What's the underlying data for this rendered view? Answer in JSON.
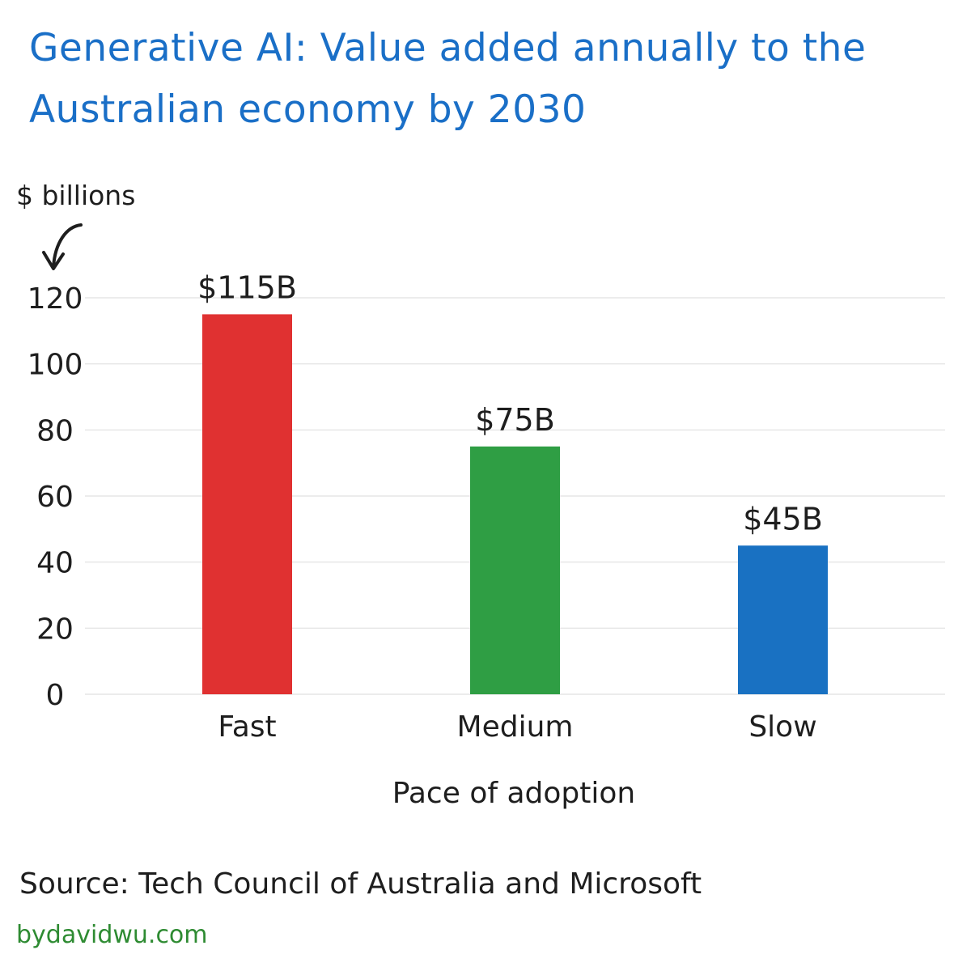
{
  "chart_data": {
    "type": "bar",
    "title": "Generative AI: Value added annually to the Australian economy by 2030",
    "ylabel": "$ billions",
    "xlabel": "Pace of adoption",
    "categories": [
      "Fast",
      "Medium",
      "Slow"
    ],
    "values": [
      115,
      75,
      45
    ],
    "data_labels": [
      "$115B",
      "$75B",
      "$45B"
    ],
    "colors": [
      "#e03131",
      "#2f9e44",
      "#1971c2"
    ],
    "ylim": [
      0,
      120
    ],
    "yticks": [
      "0",
      "20",
      "40",
      "60",
      "80",
      "100",
      "120"
    ],
    "grid": true,
    "legend": "none"
  },
  "source": "Source: Tech Council of Australia and Microsoft",
  "credit": "bydavidwu.com",
  "colors": {
    "title": "#1a6fc7",
    "text": "#1e1e1e",
    "gridline": "#e6e6e6",
    "credit": "#2e8b32"
  },
  "icons": {
    "unit_pointer": "curved-arrow-down-left-icon"
  }
}
